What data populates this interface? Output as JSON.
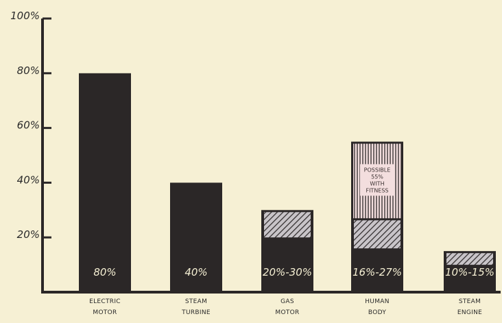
{
  "chart_data": {
    "type": "bar",
    "title": "",
    "xlabel": "",
    "ylabel": "",
    "ylim": [
      0,
      100
    ],
    "yticks": [
      {
        "value": 20,
        "label": "20%"
      },
      {
        "value": 40,
        "label": "40%"
      },
      {
        "value": 60,
        "label": "60%"
      },
      {
        "value": 80,
        "label": "80%"
      },
      {
        "value": 100,
        "label": "100%"
      }
    ],
    "grid": false,
    "categories": [
      {
        "line1": "ELECTRIC",
        "line2": "MOTOR"
      },
      {
        "line1": "STEAM",
        "line2": "TURBINE"
      },
      {
        "line1": "GAS",
        "line2": "MOTOR"
      },
      {
        "line1": "HUMAN",
        "line2": "BODY"
      },
      {
        "line1": "STEAM",
        "line2": "ENGINE"
      }
    ],
    "bars": [
      {
        "low": 80,
        "high": 80,
        "label": "80%"
      },
      {
        "low": 40,
        "high": 40,
        "label": "40%"
      },
      {
        "low": 20,
        "high": 30,
        "label": "20%-30%"
      },
      {
        "low": 16,
        "high": 27,
        "label": "16%-27%",
        "possible": 55
      },
      {
        "low": 10,
        "high": 15,
        "label": "10%-15%"
      }
    ],
    "annotation": {
      "lines": [
        "POSSIBLE",
        "55%",
        "WITH",
        "FITNESS"
      ]
    },
    "colors": {
      "background": "#f6f0d4",
      "bar": "#2b2727",
      "hatch": "#c8c4c8",
      "possible_fill": "#f3dede"
    }
  }
}
